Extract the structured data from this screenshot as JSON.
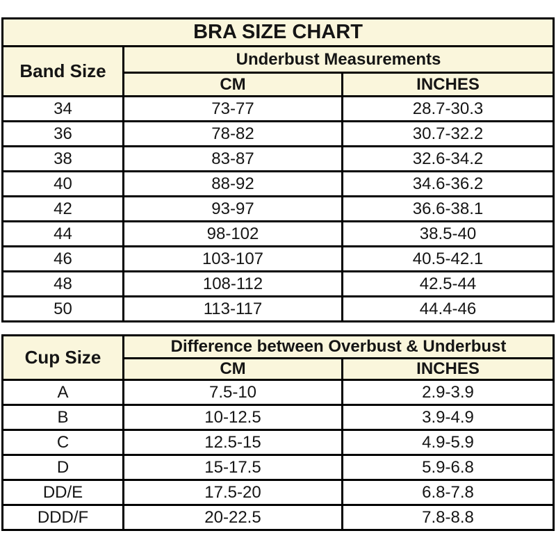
{
  "colors": {
    "header_bg": "#FAF6DC",
    "border": "#000000",
    "data_row_bg": "#FFFFFF",
    "text": "#151515"
  },
  "chart_data": [
    {
      "type": "table",
      "title": "BRA SIZE CHART",
      "corner_header": "Band Size",
      "group_header": "Underbust Measurements",
      "columns": [
        "CM",
        "INCHES"
      ],
      "rows": [
        [
          "34",
          "73-77",
          "28.7-30.3"
        ],
        [
          "36",
          "78-82",
          "30.7-32.2"
        ],
        [
          "38",
          "83-87",
          "32.6-34.2"
        ],
        [
          "40",
          "88-92",
          "34.6-36.2"
        ],
        [
          "42",
          "93-97",
          "36.6-38.1"
        ],
        [
          "44",
          "98-102",
          "38.5-40"
        ],
        [
          "46",
          "103-107",
          "40.5-42.1"
        ],
        [
          "48",
          "108-112",
          "42.5-44"
        ],
        [
          "50",
          "113-117",
          "44.4-46"
        ]
      ]
    },
    {
      "type": "table",
      "corner_header": "Cup Size",
      "group_header": "Difference between Overbust & Underbust",
      "columns": [
        "CM",
        "INCHES"
      ],
      "rows": [
        [
          "A",
          "7.5-10",
          "2.9-3.9"
        ],
        [
          "B",
          "10-12.5",
          "3.9-4.9"
        ],
        [
          "C",
          "12.5-15",
          "4.9-5.9"
        ],
        [
          "D",
          "15-17.5",
          "5.9-6.8"
        ],
        [
          "DD/E",
          "17.5-20",
          "6.8-7.8"
        ],
        [
          "DDD/F",
          "20-22.5",
          "7.8-8.8"
        ]
      ]
    }
  ]
}
